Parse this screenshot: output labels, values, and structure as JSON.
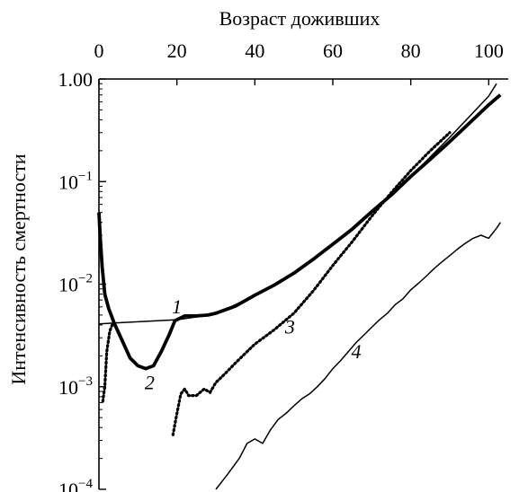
{
  "chart_data": {
    "type": "line",
    "title": "",
    "xlabel": "Возраст доживших",
    "ylabel": "Интенсивность смертности",
    "x_axis_position": "top",
    "y_scale": "log",
    "xlim": [
      0,
      105
    ],
    "ylim": [
      0.0001,
      1.0
    ],
    "x_ticks": [
      "0",
      "20",
      "40",
      "60",
      "80",
      "100"
    ],
    "x_tick_values": [
      0,
      20,
      40,
      60,
      80,
      100
    ],
    "y_ticks": [
      {
        "value": 1.0,
        "base": "1.00",
        "exp": ""
      },
      {
        "value": 0.1,
        "base": "10",
        "exp": "−1"
      },
      {
        "value": 0.01,
        "base": "10",
        "exp": "−2"
      },
      {
        "value": 0.001,
        "base": "10",
        "exp": "−3"
      },
      {
        "value": 0.0001,
        "base": "10",
        "exp": "−4"
      }
    ],
    "grid": false,
    "series": [
      {
        "label": "1",
        "style": "thin-line",
        "label_position": {
          "x": 20,
          "y": 0.0052
        },
        "x": [
          0,
          10,
          20,
          30,
          40,
          50,
          60,
          70,
          80,
          90,
          100,
          102
        ],
        "y": [
          0.0041,
          0.0043,
          0.0045,
          0.0051,
          0.0078,
          0.0128,
          0.0245,
          0.051,
          0.112,
          0.27,
          0.68,
          0.9
        ]
      },
      {
        "label": "2",
        "style": "thick-line",
        "label_position": {
          "x": 13,
          "y": 0.00095
        },
        "x": [
          0,
          0.3,
          0.8,
          1.5,
          2.5,
          4,
          6,
          8,
          10,
          12,
          14,
          16,
          18,
          19.5,
          22,
          25,
          28,
          30,
          35,
          40,
          45,
          50,
          55,
          60,
          65,
          70,
          75,
          80,
          85,
          90,
          95,
          100,
          103
        ],
        "y": [
          0.05,
          0.03,
          0.015,
          0.008,
          0.0058,
          0.0041,
          0.0028,
          0.0019,
          0.0016,
          0.0015,
          0.0016,
          0.0022,
          0.0032,
          0.0044,
          0.0049,
          0.0049,
          0.005,
          0.0052,
          0.0061,
          0.0078,
          0.0098,
          0.0128,
          0.0175,
          0.0245,
          0.0345,
          0.051,
          0.074,
          0.112,
          0.165,
          0.245,
          0.37,
          0.56,
          0.7
        ]
      },
      {
        "label": "3",
        "style": "dotted",
        "label_position": {
          "x": 49,
          "y": 0.0033
        },
        "x": [
          1,
          1.5,
          2,
          2.8,
          3.5,
          19,
          19.8,
          21,
          22,
          23,
          25,
          27,
          28.5,
          30,
          32,
          35,
          38,
          40,
          45,
          50,
          55,
          60,
          65,
          70,
          75,
          80,
          85,
          90
        ],
        "y": [
          0.00072,
          0.001,
          0.0022,
          0.0035,
          0.0041,
          0.00034,
          0.0005,
          0.00085,
          0.00095,
          0.00082,
          0.00082,
          0.00095,
          0.00088,
          0.0011,
          0.0013,
          0.0017,
          0.0022,
          0.0026,
          0.0036,
          0.0052,
          0.0086,
          0.0152,
          0.026,
          0.046,
          0.078,
          0.128,
          0.2,
          0.3
        ]
      },
      {
        "label": "4",
        "style": "thin-line",
        "label_position": {
          "x": 66,
          "y": 0.0019
        },
        "x": [
          30,
          33,
          36,
          38,
          40,
          42,
          44,
          46,
          48,
          50,
          52,
          54,
          56,
          58,
          60,
          62,
          64,
          66,
          68,
          70,
          72,
          74,
          76,
          78,
          80,
          82,
          84,
          86,
          88,
          90,
          92,
          94,
          96,
          98,
          100,
          102,
          103
        ],
        "y": [
          0.0001,
          0.00014,
          0.0002,
          0.00028,
          0.00031,
          0.00028,
          0.00038,
          0.00048,
          0.00055,
          0.00065,
          0.00076,
          0.00085,
          0.001,
          0.0012,
          0.0015,
          0.0018,
          0.0022,
          0.0027,
          0.0032,
          0.0038,
          0.0045,
          0.0052,
          0.0063,
          0.0072,
          0.0088,
          0.0102,
          0.012,
          0.0142,
          0.0165,
          0.019,
          0.022,
          0.025,
          0.028,
          0.03,
          0.028,
          0.035,
          0.04
        ]
      }
    ]
  }
}
